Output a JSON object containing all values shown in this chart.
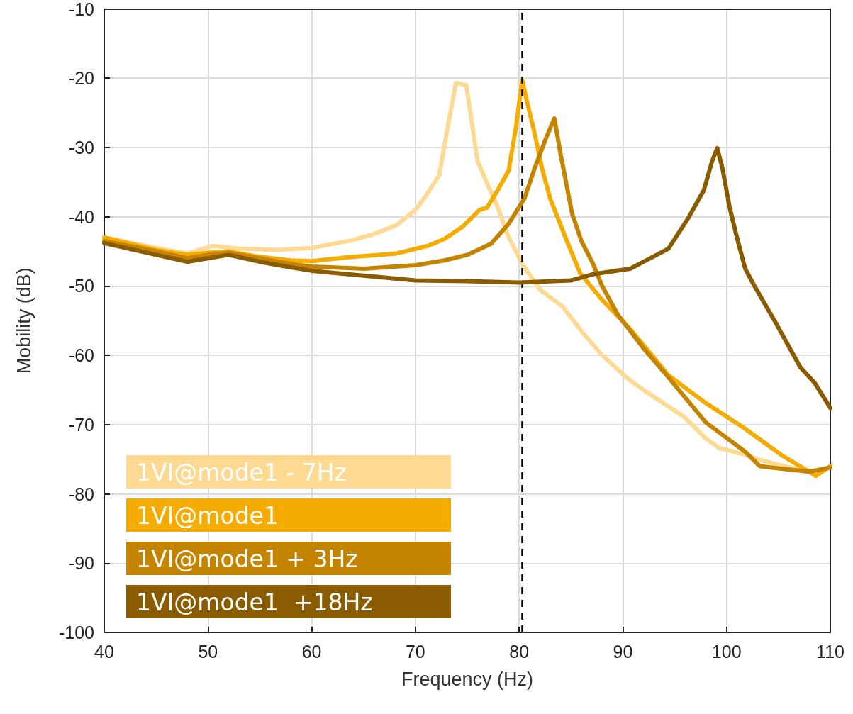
{
  "chart_data": {
    "type": "line",
    "xlabel": "Frequency (Hz)",
    "ylabel": "Mobility (dB)",
    "xlim": [
      40,
      110
    ],
    "xticks": [
      40,
      50,
      60,
      70,
      80,
      90,
      100,
      110
    ],
    "ylim": [
      -100,
      -10
    ],
    "yticks": [
      -100,
      -90,
      -80,
      -70,
      -60,
      -50,
      -40,
      -30,
      -20,
      -10
    ],
    "grid": true,
    "legend": "bottom left",
    "marker": "none",
    "line_style": "solid",
    "ref_lines": [
      {
        "axis": "x",
        "value": 80.3,
        "label": null,
        "color": "#000000",
        "line_style": "dashed"
      }
    ],
    "series": [
      {
        "name": "1VI@mode1 - 7Hz",
        "color": "#fdd992",
        "x": [
          40,
          45,
          48,
          50.5,
          53,
          56.6,
          60,
          63.9,
          66,
          68.2,
          70,
          71,
          72.3,
          73,
          73.9,
          74.9,
          75.5,
          76,
          77,
          77.8,
          79,
          80.5,
          82,
          84.2,
          86,
          88,
          90.5,
          92,
          94,
          96,
          98,
          99.3,
          101.7,
          103,
          105,
          107,
          109,
          110
        ],
        "values": [
          -43,
          -44.5,
          -45.3,
          -44.2,
          -44.6,
          -44.8,
          -44.5,
          -43.4,
          -42.5,
          -41.2,
          -39,
          -37,
          -34,
          -28,
          -20.7,
          -21,
          -27,
          -32,
          -35.5,
          -38.1,
          -43,
          -47.3,
          -50.5,
          -53,
          -56.5,
          -60,
          -63.4,
          -65,
          -67,
          -69,
          -72,
          -73.4,
          -74.3,
          -75,
          -75.8,
          -76.5,
          -76.8,
          -76
        ]
      },
      {
        "name": "1VI@mode1",
        "color": "#f5ab00",
        "x": [
          40,
          45,
          48,
          50,
          52,
          55,
          58,
          60,
          63.9,
          68.2,
          71.2,
          72.8,
          74.5,
          76.2,
          76.9,
          78,
          79,
          79.7,
          80.3,
          80.7,
          81.5,
          82.2,
          83,
          84.6,
          85.9,
          88,
          90.7,
          94.4,
          98,
          101.7,
          105.4,
          108.6,
          110
        ],
        "values": [
          -43,
          -44.8,
          -45.5,
          -45.2,
          -45,
          -45.8,
          -46.3,
          -46.4,
          -45.8,
          -45.3,
          -44.2,
          -43.2,
          -41.5,
          -39,
          -38.7,
          -36,
          -33.3,
          -27,
          -20.3,
          -23,
          -28,
          -33,
          -37.4,
          -43.5,
          -48.2,
          -52,
          -56.2,
          -62.9,
          -66.9,
          -70.5,
          -74.5,
          -77.4,
          -76
        ]
      },
      {
        "name": "1VI@mode1 + 3Hz",
        "color": "#c48400",
        "x": [
          40,
          45,
          48,
          50,
          52,
          55,
          58,
          60,
          65,
          70,
          72.8,
          75,
          77.3,
          79,
          80.5,
          81.5,
          82.5,
          83.4,
          84,
          85.1,
          86,
          87.1,
          88,
          89.5,
          92,
          94.4,
          98,
          101.7,
          103.2,
          105,
          108,
          110
        ],
        "values": [
          -43.5,
          -45,
          -46,
          -45.5,
          -45.2,
          -46,
          -46.8,
          -47.2,
          -47.5,
          -47,
          -46.3,
          -45.5,
          -43.9,
          -41,
          -37.4,
          -33,
          -29,
          -25.8,
          -31,
          -39.5,
          -43.5,
          -46.7,
          -50,
          -54.1,
          -59,
          -63.2,
          -69.7,
          -73.8,
          -76,
          -76.3,
          -76.8,
          -76.2
        ]
      },
      {
        "name": "1VI@mode1  +18Hz",
        "color": "#8b5b00",
        "x": [
          40,
          45,
          48,
          50,
          52,
          55,
          58,
          60,
          65,
          70,
          75,
          80,
          85,
          87.1,
          90.7,
          92,
          94.4,
          96.3,
          97.8,
          98.6,
          99.1,
          99.6,
          100.3,
          101,
          101.8,
          102.5,
          104.7,
          107.1,
          108.5,
          110
        ],
        "values": [
          -43.8,
          -45.5,
          -46.5,
          -46,
          -45.5,
          -46.5,
          -47.3,
          -47.8,
          -48.5,
          -49.2,
          -49.3,
          -49.5,
          -49.2,
          -48.3,
          -47.5,
          -46.5,
          -44.6,
          -40.2,
          -36.2,
          -32,
          -30.1,
          -33,
          -38.7,
          -43,
          -47.5,
          -49.5,
          -55.2,
          -61.7,
          -64,
          -67.6
        ]
      }
    ]
  }
}
